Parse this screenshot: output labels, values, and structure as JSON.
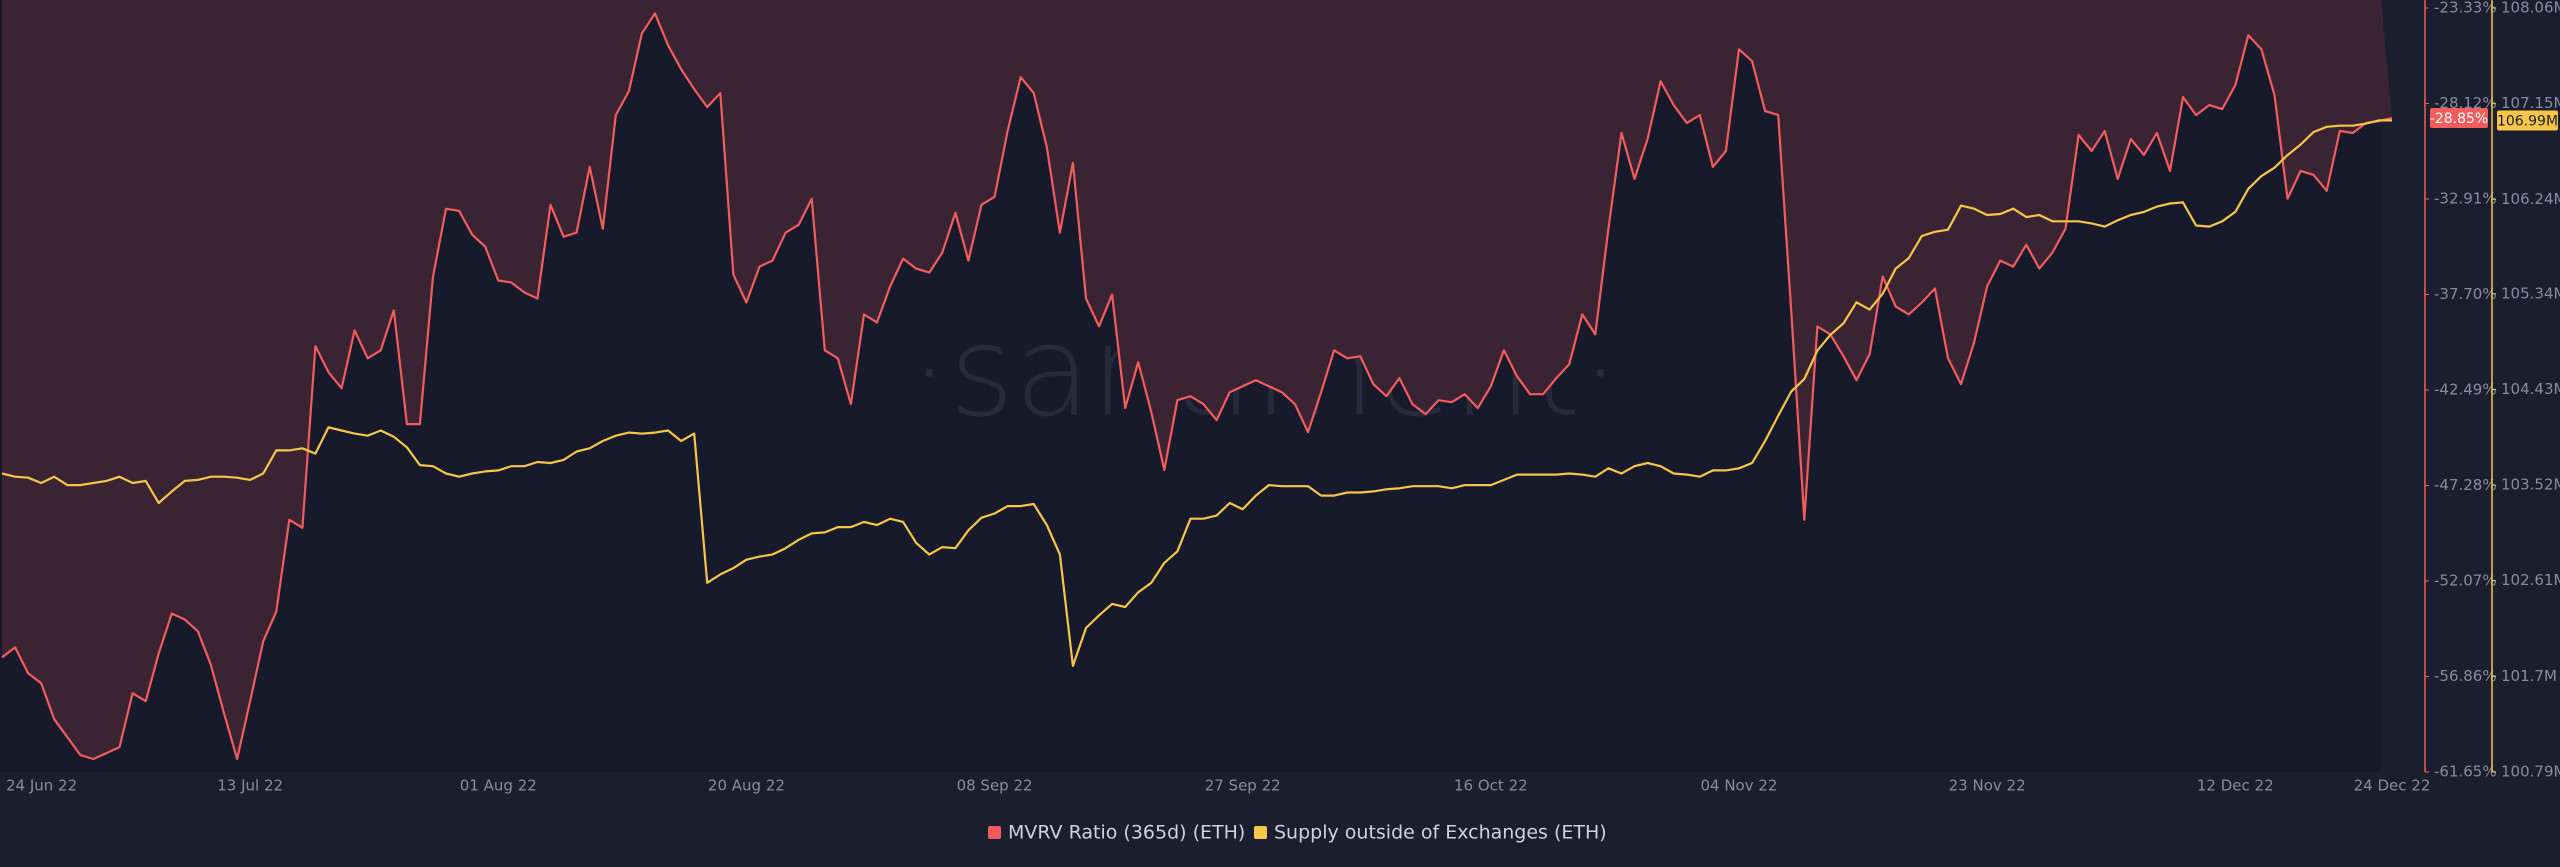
{
  "chart_data": {
    "type": "line",
    "watermark": "·santiment·",
    "x": [
      "2022-06-24",
      "2022-06-25",
      "2022-06-26",
      "2022-06-27",
      "2022-06-28",
      "2022-06-29",
      "2022-06-30",
      "2022-07-01",
      "2022-07-02",
      "2022-07-03",
      "2022-07-04",
      "2022-07-05",
      "2022-07-06",
      "2022-07-07",
      "2022-07-08",
      "2022-07-09",
      "2022-07-10",
      "2022-07-11",
      "2022-07-12",
      "2022-07-13",
      "2022-07-14",
      "2022-07-15",
      "2022-07-16",
      "2022-07-17",
      "2022-07-18",
      "2022-07-19",
      "2022-07-20",
      "2022-07-21",
      "2022-07-22",
      "2022-07-23",
      "2022-07-24",
      "2022-07-25",
      "2022-07-26",
      "2022-07-27",
      "2022-07-28",
      "2022-07-29",
      "2022-07-30",
      "2022-07-31",
      "2022-08-01",
      "2022-08-02",
      "2022-08-03",
      "2022-08-04",
      "2022-08-05",
      "2022-08-06",
      "2022-08-07",
      "2022-08-08",
      "2022-08-09",
      "2022-08-10",
      "2022-08-11",
      "2022-08-12",
      "2022-08-13",
      "2022-08-14",
      "2022-08-15",
      "2022-08-16",
      "2022-08-17",
      "2022-08-18",
      "2022-08-19",
      "2022-08-20",
      "2022-08-21",
      "2022-08-22",
      "2022-08-23",
      "2022-08-24",
      "2022-08-25",
      "2022-08-26",
      "2022-08-27",
      "2022-08-28",
      "2022-08-29",
      "2022-08-30",
      "2022-08-31",
      "2022-09-01",
      "2022-09-02",
      "2022-09-03",
      "2022-09-04",
      "2022-09-05",
      "2022-09-06",
      "2022-09-07",
      "2022-09-08",
      "2022-09-09",
      "2022-09-10",
      "2022-09-11",
      "2022-09-12",
      "2022-09-13",
      "2022-09-14",
      "2022-09-15",
      "2022-09-16",
      "2022-09-17",
      "2022-09-18",
      "2022-09-19",
      "2022-09-20",
      "2022-09-21",
      "2022-09-22",
      "2022-09-23",
      "2022-09-24",
      "2022-09-25",
      "2022-09-26",
      "2022-09-27",
      "2022-09-28",
      "2022-09-29",
      "2022-09-30",
      "2022-10-01",
      "2022-10-02",
      "2022-10-03",
      "2022-10-04",
      "2022-10-05",
      "2022-10-06",
      "2022-10-07",
      "2022-10-08",
      "2022-10-09",
      "2022-10-10",
      "2022-10-11",
      "2022-10-12",
      "2022-10-13",
      "2022-10-14",
      "2022-10-15",
      "2022-10-16",
      "2022-10-17",
      "2022-10-18",
      "2022-10-19",
      "2022-10-20",
      "2022-10-21",
      "2022-10-22",
      "2022-10-23",
      "2022-10-24",
      "2022-10-25",
      "2022-10-26",
      "2022-10-27",
      "2022-10-28",
      "2022-10-29",
      "2022-10-30",
      "2022-10-31",
      "2022-11-01",
      "2022-11-02",
      "2022-11-03",
      "2022-11-04",
      "2022-11-05",
      "2022-11-06",
      "2022-11-07",
      "2022-11-08",
      "2022-11-09",
      "2022-11-10",
      "2022-11-11",
      "2022-11-12",
      "2022-11-13",
      "2022-11-14",
      "2022-11-15",
      "2022-11-16",
      "2022-11-17",
      "2022-11-18",
      "2022-11-19",
      "2022-11-20",
      "2022-11-21",
      "2022-11-22",
      "2022-11-23",
      "2022-11-24",
      "2022-11-25",
      "2022-11-26",
      "2022-11-27",
      "2022-11-28",
      "2022-11-29",
      "2022-11-30",
      "2022-12-01",
      "2022-12-02",
      "2022-12-03",
      "2022-12-04",
      "2022-12-05",
      "2022-12-06",
      "2022-12-07",
      "2022-12-08",
      "2022-12-09",
      "2022-12-10",
      "2022-12-11",
      "2022-12-12",
      "2022-12-13",
      "2022-12-14",
      "2022-12-15",
      "2022-12-16",
      "2022-12-17",
      "2022-12-18",
      "2022-12-19",
      "2022-12-20",
      "2022-12-21",
      "2022-12-22",
      "2022-12-23",
      "2022-12-24"
    ],
    "xlim": [
      "2022-06-24",
      "2022-12-24"
    ],
    "xticks": [
      {
        "value": "2022-06-24",
        "label": "24 Jun 22"
      },
      {
        "value": "2022-07-13",
        "label": "13 Jul 22"
      },
      {
        "value": "2022-08-01",
        "label": "01 Aug 22"
      },
      {
        "value": "2022-08-20",
        "label": "20 Aug 22"
      },
      {
        "value": "2022-09-08",
        "label": "08 Sep 22"
      },
      {
        "value": "2022-09-27",
        "label": "27 Sep 22"
      },
      {
        "value": "2022-10-16",
        "label": "16 Oct 22"
      },
      {
        "value": "2022-11-04",
        "label": "04 Nov 22"
      },
      {
        "value": "2022-11-23",
        "label": "23 Nov 22"
      },
      {
        "value": "2022-12-12",
        "label": "12 Dec 22"
      },
      {
        "value": "2022-12-24",
        "label": "24 Dec 22"
      }
    ],
    "ylim": [
      -61.65,
      -23.33
    ],
    "yticks": [
      {
        "value": -61.65,
        "label": "-61.65%"
      },
      {
        "value": -56.86,
        "label": "-56.86%"
      },
      {
        "value": -52.07,
        "label": "-52.07%"
      },
      {
        "value": -47.28,
        "label": "-47.28%"
      },
      {
        "value": -42.49,
        "label": "-42.49%"
      },
      {
        "value": -37.7,
        "label": "-37.70%"
      },
      {
        "value": -32.91,
        "label": "-32.91%"
      },
      {
        "value": -28.12,
        "label": "-28.12%"
      },
      {
        "value": -23.33,
        "label": "-23.33%"
      }
    ],
    "y2lim": [
      100790000.0,
      108060000.0
    ],
    "y2ticks": [
      {
        "value": 100790000.0,
        "label": "100.79M"
      },
      {
        "value": 101700000.0,
        "label": "101.7M"
      },
      {
        "value": 102610000.0,
        "label": "102.61M"
      },
      {
        "value": 103520000.0,
        "label": "103.52M"
      },
      {
        "value": 104430000.0,
        "label": "104.43M"
      },
      {
        "value": 105340000.0,
        "label": "105.34M"
      },
      {
        "value": 106240000.0,
        "label": "106.24M"
      },
      {
        "value": 107150000.0,
        "label": "107.15M"
      },
      {
        "value": 108060000.0,
        "label": "108.06M"
      }
    ],
    "grid": false,
    "legend": "bottom",
    "series": [
      {
        "name": "MVRV Ratio (365d) (ETH)",
        "color": "#f25c5c",
        "area_color": "#3a2434",
        "axis": "y",
        "last_value_label": "-28.85%",
        "values": [
          -55.9,
          -55.4,
          -56.7,
          -57.2,
          -59.0,
          -59.9,
          -60.8,
          -61.0,
          -60.7,
          -60.4,
          -57.7,
          -58.1,
          -55.7,
          -53.7,
          -54.0,
          -54.6,
          -56.3,
          -58.7,
          -61.0,
          -58.1,
          -55.1,
          -53.6,
          -49.0,
          -49.4,
          -40.3,
          -41.6,
          -42.4,
          -39.5,
          -40.9,
          -40.5,
          -38.5,
          -44.2,
          -44.2,
          -36.8,
          -33.4,
          -33.5,
          -34.7,
          -35.3,
          -37.0,
          -37.1,
          -37.6,
          -37.9,
          -33.2,
          -34.8,
          -34.6,
          -31.3,
          -34.4,
          -28.7,
          -27.5,
          -24.6,
          -23.6,
          -25.2,
          -26.4,
          -27.4,
          -28.3,
          -27.6,
          -36.7,
          -38.1,
          -36.3,
          -36.0,
          -34.6,
          -34.2,
          -32.9,
          -40.5,
          -40.9,
          -43.2,
          -38.7,
          -39.1,
          -37.3,
          -35.9,
          -36.4,
          -36.6,
          -35.6,
          -33.6,
          -36.0,
          -33.2,
          -32.8,
          -29.5,
          -26.8,
          -27.6,
          -30.3,
          -34.6,
          -31.1,
          -37.9,
          -39.3,
          -37.7,
          -43.4,
          -41.1,
          -43.6,
          -46.5,
          -43.0,
          -42.8,
          -43.2,
          -44.0,
          -42.6,
          -42.3,
          -42.0,
          -42.3,
          -42.6,
          -43.2,
          -44.6,
          -42.6,
          -40.5,
          -40.9,
          -40.8,
          -42.2,
          -42.8,
          -41.9,
          -43.2,
          -43.7,
          -43.0,
          -43.1,
          -42.7,
          -43.4,
          -42.3,
          -40.5,
          -41.8,
          -42.7,
          -42.7,
          -41.9,
          -41.2,
          -38.7,
          -39.7,
          -34.4,
          -29.6,
          -31.9,
          -29.9,
          -27.0,
          -28.2,
          -29.1,
          -28.7,
          -31.3,
          -30.5,
          -25.4,
          -26.0,
          -28.5,
          -28.7,
          -38.5,
          -49.0,
          -39.3,
          -39.7,
          -40.8,
          -42.0,
          -40.7,
          -36.8,
          -38.3,
          -38.7,
          -38.1,
          -37.4,
          -40.9,
          -42.2,
          -40.1,
          -37.3,
          -36.0,
          -36.3,
          -35.2,
          -36.4,
          -35.6,
          -34.4,
          -29.7,
          -30.5,
          -29.5,
          -31.9,
          -29.9,
          -30.7,
          -29.6,
          -31.5,
          -27.8,
          -28.7,
          -28.2,
          -28.4,
          -27.2,
          -24.7,
          -25.4,
          -27.7,
          -32.9,
          -31.5,
          -31.7,
          -32.5,
          -29.5,
          -29.6,
          -29.1,
          -29.0,
          -28.85
        ]
      },
      {
        "name": "Supply outside of Exchanges (ETH)",
        "color": "#f7c548",
        "axis": "y2",
        "last_value_label": "106.99M",
        "values": [
          103630000.0,
          103600000.0,
          103590000.0,
          103540000.0,
          103600000.0,
          103520000.0,
          103520000.0,
          103540000.0,
          103560000.0,
          103600000.0,
          103540000.0,
          103560000.0,
          103350000.0,
          103460000.0,
          103560000.0,
          103570000.0,
          103600000.0,
          103600000.0,
          103590000.0,
          103570000.0,
          103630000.0,
          103850000.0,
          103850000.0,
          103870000.0,
          103820000.0,
          104070000.0,
          104040000.0,
          104010000.0,
          103990000.0,
          104040000.0,
          103980000.0,
          103880000.0,
          103710000.0,
          103700000.0,
          103630000.0,
          103600000.0,
          103630000.0,
          103650000.0,
          103660000.0,
          103700000.0,
          103700000.0,
          103740000.0,
          103730000.0,
          103760000.0,
          103840000.0,
          103870000.0,
          103940000.0,
          103990000.0,
          104020000.0,
          104010000.0,
          104020000.0,
          104040000.0,
          103940000.0,
          104010000.0,
          102590000.0,
          102670000.0,
          102730000.0,
          102810000.0,
          102840000.0,
          102860000.0,
          102920000.0,
          103000000.0,
          103060000.0,
          103070000.0,
          103120000.0,
          103120000.0,
          103170000.0,
          103140000.0,
          103200000.0,
          103170000.0,
          102970000.0,
          102860000.0,
          102930000.0,
          102920000.0,
          103090000.0,
          103210000.0,
          103250000.0,
          103320000.0,
          103320000.0,
          103340000.0,
          103140000.0,
          102860000.0,
          101800000.0,
          102160000.0,
          102280000.0,
          102390000.0,
          102360000.0,
          102500000.0,
          102590000.0,
          102780000.0,
          102890000.0,
          103200000.0,
          103200000.0,
          103230000.0,
          103350000.0,
          103290000.0,
          103420000.0,
          103520000.0,
          103510000.0,
          103510000.0,
          103510000.0,
          103420000.0,
          103420000.0,
          103450000.0,
          103450000.0,
          103460000.0,
          103480000.0,
          103490000.0,
          103510000.0,
          103510000.0,
          103510000.0,
          103490000.0,
          103520000.0,
          103520000.0,
          103520000.0,
          103570000.0,
          103620000.0,
          103620000.0,
          103620000.0,
          103620000.0,
          103630000.0,
          103620000.0,
          103600000.0,
          103680000.0,
          103630000.0,
          103700000.0,
          103730000.0,
          103700000.0,
          103630000.0,
          103620000.0,
          103600000.0,
          103660000.0,
          103660000.0,
          103680000.0,
          103730000.0,
          103940000.0,
          104180000.0,
          104410000.0,
          104530000.0,
          104800000.0,
          104950000.0,
          105060000.0,
          105260000.0,
          105190000.0,
          105340000.0,
          105580000.0,
          105680000.0,
          105890000.0,
          105930000.0,
          105950000.0,
          106180000.0,
          106150000.0,
          106090000.0,
          106100000.0,
          106150000.0,
          106070000.0,
          106090000.0,
          106030000.0,
          106030000.0,
          106030000.0,
          106010000.0,
          105980000.0,
          106040000.0,
          106090000.0,
          106120000.0,
          106170000.0,
          106200000.0,
          106210000.0,
          105990000.0,
          105980000.0,
          106030000.0,
          106120000.0,
          106340000.0,
          106460000.0,
          106540000.0,
          106660000.0,
          106760000.0,
          106880000.0,
          106930000.0,
          106940000.0,
          106940000.0,
          106960000.0,
          106990000.0,
          106990000.0
        ]
      }
    ]
  }
}
